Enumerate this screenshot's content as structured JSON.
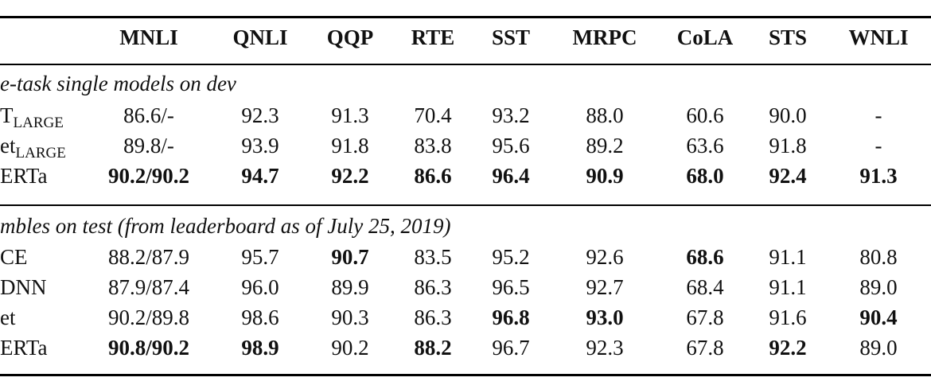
{
  "header": [
    "MNLI",
    "QNLI",
    "QQP",
    "RTE",
    "SST",
    "MRPC",
    "CoLA",
    "STS",
    "WNLI"
  ],
  "sections": [
    {
      "title": "e-task single models on dev",
      "rows": [
        {
          "model": "T",
          "sub": "LARGE",
          "cells": [
            {
              "v": "86.6/-"
            },
            {
              "v": "92.3"
            },
            {
              "v": "91.3"
            },
            {
              "v": "70.4"
            },
            {
              "v": "93.2"
            },
            {
              "v": "88.0"
            },
            {
              "v": "60.6"
            },
            {
              "v": "90.0"
            },
            {
              "v": "-"
            }
          ]
        },
        {
          "model": "et",
          "sub": "LARGE",
          "cells": [
            {
              "v": "89.8/-"
            },
            {
              "v": "93.9"
            },
            {
              "v": "91.8"
            },
            {
              "v": "83.8"
            },
            {
              "v": "95.6"
            },
            {
              "v": "89.2"
            },
            {
              "v": "63.6"
            },
            {
              "v": "91.8"
            },
            {
              "v": "-"
            }
          ]
        },
        {
          "model": "ERTa",
          "sub": "",
          "cells": [
            {
              "v": "90.2/90.2",
              "b": true
            },
            {
              "v": "94.7",
              "b": true
            },
            {
              "v": "92.2",
              "b": true
            },
            {
              "v": "86.6",
              "b": true
            },
            {
              "v": "96.4",
              "b": true
            },
            {
              "v": "90.9",
              "b": true
            },
            {
              "v": "68.0",
              "b": true
            },
            {
              "v": "92.4",
              "b": true
            },
            {
              "v": "91.3",
              "b": true
            }
          ]
        }
      ]
    },
    {
      "title": "mbles on test (from leaderboard as of July 25, 2019)",
      "rows": [
        {
          "model": "CE",
          "sub": "",
          "cells": [
            {
              "v": "88.2/87.9"
            },
            {
              "v": "95.7"
            },
            {
              "v": "90.7",
              "b": true
            },
            {
              "v": "83.5"
            },
            {
              "v": "95.2"
            },
            {
              "v": "92.6"
            },
            {
              "v": "68.6",
              "b": true
            },
            {
              "v": "91.1"
            },
            {
              "v": "80.8"
            }
          ]
        },
        {
          "model": "DNN",
          "sub": "",
          "cells": [
            {
              "v": "87.9/87.4"
            },
            {
              "v": "96.0"
            },
            {
              "v": "89.9"
            },
            {
              "v": "86.3"
            },
            {
              "v": "96.5"
            },
            {
              "v": "92.7"
            },
            {
              "v": "68.4"
            },
            {
              "v": "91.1"
            },
            {
              "v": "89.0"
            }
          ]
        },
        {
          "model": "et",
          "sub": "",
          "cells": [
            {
              "v": "90.2/89.8"
            },
            {
              "v": "98.6"
            },
            {
              "v": "90.3"
            },
            {
              "v": "86.3"
            },
            {
              "v": "96.8",
              "b": true
            },
            {
              "v": "93.0",
              "b": true
            },
            {
              "v": "67.8"
            },
            {
              "v": "91.6"
            },
            {
              "v": "90.4",
              "b": true
            }
          ]
        },
        {
          "model": "ERTa",
          "sub": "",
          "cells": [
            {
              "v": "90.8/90.2",
              "b": true
            },
            {
              "v": "98.9",
              "b": true
            },
            {
              "v": "90.2"
            },
            {
              "v": "88.2",
              "b": true
            },
            {
              "v": "96.7"
            },
            {
              "v": "92.3"
            },
            {
              "v": "67.8"
            },
            {
              "v": "92.2",
              "b": true
            },
            {
              "v": "89.0"
            }
          ]
        }
      ]
    }
  ]
}
